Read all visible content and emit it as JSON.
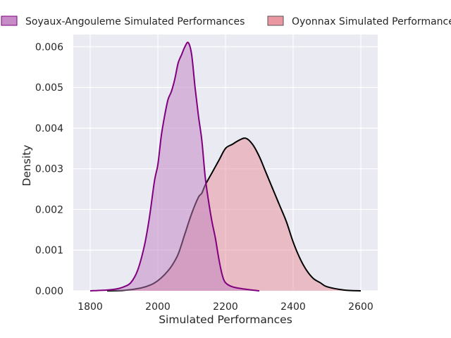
{
  "chart_data": {
    "type": "area",
    "title": "",
    "xlabel": "Simulated Performances",
    "ylabel": "Density",
    "xlim": [
      1750,
      2650
    ],
    "ylim": [
      0,
      0.0063
    ],
    "xticks": [
      1800,
      2000,
      2200,
      2400,
      2600
    ],
    "yticks": [
      0.0,
      0.001,
      0.002,
      0.003,
      0.004,
      0.005,
      0.006
    ],
    "ytick_labels": [
      "0.000",
      "0.001",
      "0.002",
      "0.003",
      "0.004",
      "0.005",
      "0.006"
    ],
    "grid": true,
    "legend_position": "top",
    "series": [
      {
        "name": "Soyaux-Angouleme Simulated Performances",
        "fill_color": "#c080c0",
        "line_color": "#800080",
        "x": [
          1800,
          1850,
          1880,
          1900,
          1920,
          1940,
          1960,
          1975,
          1990,
          2000,
          2010,
          2020,
          2030,
          2040,
          2050,
          2060,
          2070,
          2080,
          2090,
          2100,
          2110,
          2120,
          2130,
          2140,
          2150,
          2160,
          2170,
          2180,
          2190,
          2200,
          2220,
          2250,
          2300
        ],
        "y": [
          0.0,
          2e-05,
          5e-05,
          0.0001,
          0.0002,
          0.0005,
          0.0011,
          0.0018,
          0.0027,
          0.0031,
          0.0038,
          0.0043,
          0.0047,
          0.0049,
          0.0052,
          0.0056,
          0.0058,
          0.006,
          0.0061,
          0.0058,
          0.005,
          0.0043,
          0.0037,
          0.0028,
          0.0022,
          0.0017,
          0.0013,
          0.0008,
          0.0004,
          0.0002,
          0.0001,
          5e-05,
          0.0
        ]
      },
      {
        "name": "Oyonnax Simulated Performances",
        "fill_color": "#e88c98",
        "line_color": "#000000",
        "x": [
          1850,
          1900,
          1950,
          1980,
          2000,
          2020,
          2040,
          2060,
          2080,
          2100,
          2120,
          2130,
          2140,
          2160,
          2180,
          2200,
          2220,
          2240,
          2260,
          2280,
          2300,
          2320,
          2340,
          2360,
          2380,
          2400,
          2420,
          2440,
          2460,
          2480,
          2500,
          2550,
          2600
        ],
        "y": [
          0.0,
          1e-05,
          7e-05,
          0.00015,
          0.00025,
          0.0004,
          0.0006,
          0.0009,
          0.0014,
          0.0019,
          0.0023,
          0.0024,
          0.0026,
          0.0029,
          0.0032,
          0.0035,
          0.0036,
          0.0037,
          0.00375,
          0.0036,
          0.0033,
          0.0029,
          0.0025,
          0.0021,
          0.0017,
          0.0012,
          0.0008,
          0.0005,
          0.0003,
          0.0002,
          0.0001,
          2e-05,
          0.0
        ]
      }
    ]
  }
}
